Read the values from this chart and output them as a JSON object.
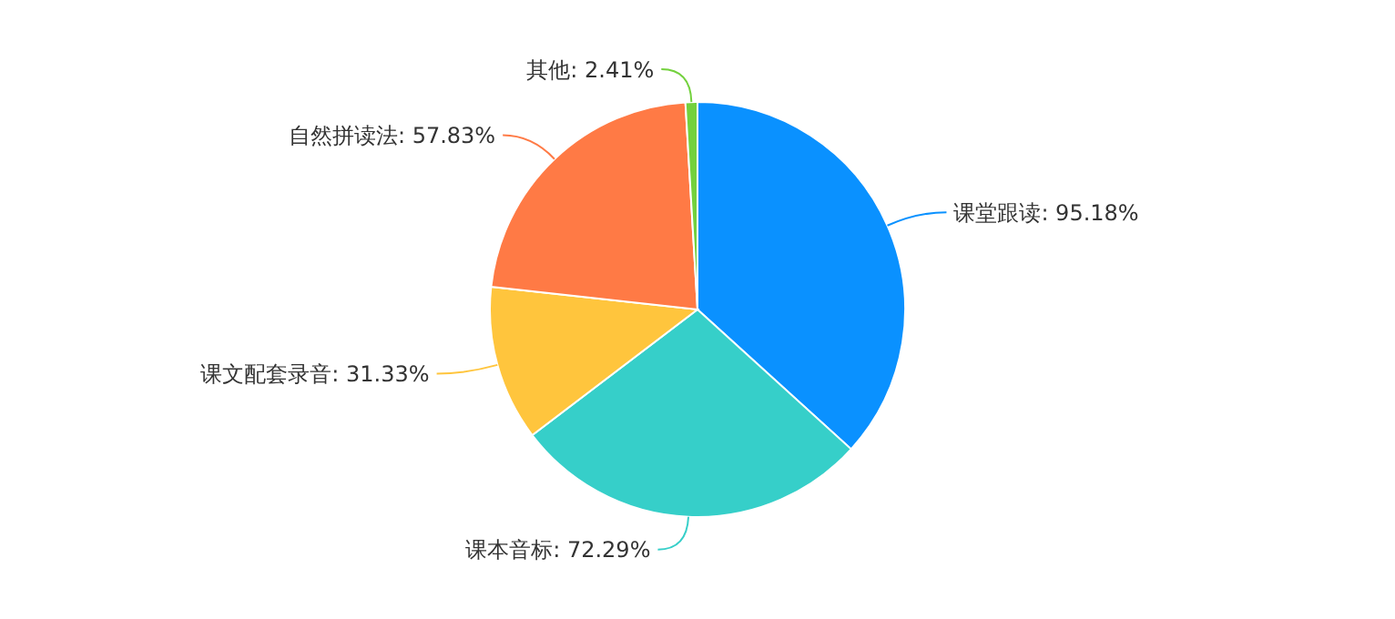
{
  "chart_data": {
    "type": "pie",
    "categories": [
      "课堂跟读",
      "课本音标",
      "课文配套录音",
      "自然拼读法",
      "其他"
    ],
    "values": [
      95.18,
      72.29,
      31.33,
      57.83,
      2.41
    ],
    "value_labels": [
      "95.18%",
      "72.29%",
      "31.33%",
      "57.83%",
      "2.41%"
    ],
    "colors": [
      "#0a91ff",
      "#36cfc9",
      "#ffc53d",
      "#ff7a45",
      "#73d13d"
    ]
  }
}
